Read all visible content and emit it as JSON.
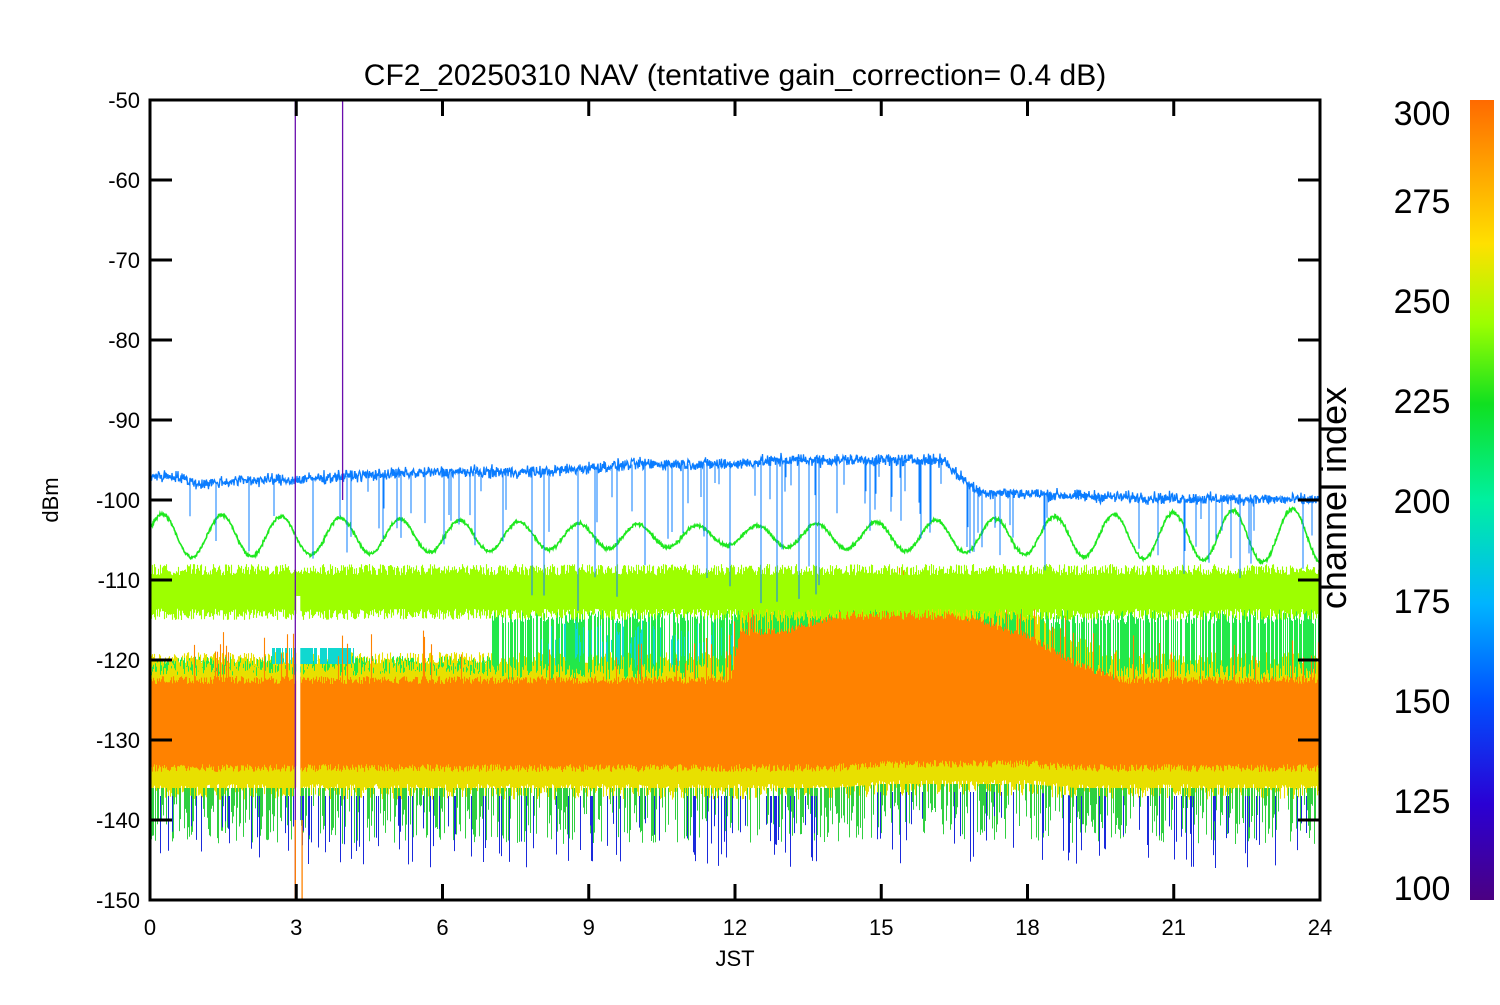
{
  "chart_data": {
    "type": "line",
    "title": "CF2_20250310 NAV (tentative gain_correction=  0.4 dB)",
    "xlabel": "JST",
    "ylabel": "dBm",
    "xlim": [
      0,
      24
    ],
    "ylim": [
      -150,
      -50
    ],
    "x_ticks": [
      "0",
      "3",
      "6",
      "9",
      "12",
      "15",
      "18",
      "21",
      "24"
    ],
    "y_ticks": [
      "-50",
      "-60",
      "-70",
      "-80",
      "-90",
      "-100",
      "-110",
      "-120",
      "-130",
      "-140",
      "-150"
    ],
    "grid": false,
    "colorbar": {
      "label": "channel index",
      "range": [
        100,
        300
      ],
      "ticks": [
        "300",
        "275",
        "250",
        "225",
        "200",
        "175",
        "150",
        "125",
        "100"
      ],
      "colormap": "rainbow (purple-blue-cyan-green-yellow-orange)"
    },
    "series": [
      {
        "channel_index": 150,
        "color": "#0a7cff",
        "description_points_x": [
          0,
          0.5,
          1,
          2,
          3,
          4,
          6,
          8,
          9,
          10,
          12,
          13,
          15,
          16.3,
          16.5,
          17,
          18,
          19,
          21,
          24
        ],
        "description_points_y": [
          -97,
          -97,
          -98,
          -97.5,
          -97.5,
          -97,
          -96.5,
          -96.5,
          -96,
          -95.5,
          -95.5,
          -95,
          -95,
          -95,
          -96.5,
          -99,
          -99.2,
          -99.5,
          -99.8,
          -100
        ]
      },
      {
        "channel_index": 225,
        "color": "#1ee81e",
        "shape": "sinusoid",
        "x": [
          0,
          24
        ],
        "center": -104.5,
        "amplitude_start": 2.8,
        "amplitude_mid": 1.2,
        "amplitude_end": 3.5,
        "period_hours": 1.22
      },
      {
        "channel_index": 260,
        "color": "#9dff00",
        "band_center": -111.5,
        "band_halfwidth": 3.5,
        "x": [
          0,
          24
        ]
      },
      {
        "channel_index": 210,
        "color": "#22e84a",
        "band_center": -118,
        "band_halfwidth": 4.5,
        "x": [
          0,
          24
        ]
      },
      {
        "channel_index": 280,
        "color": "#ff8200",
        "x": [
          0,
          2,
          4,
          6,
          8,
          10,
          11.9,
          12.1,
          13,
          14,
          15,
          16,
          17,
          18,
          19,
          20,
          22,
          24
        ],
        "center": [
          -128,
          -128,
          -128,
          -128,
          -128,
          -128,
          -128,
          -125,
          -125,
          -124,
          -123.5,
          -123.5,
          -124,
          -125,
          -127,
          -128,
          -128,
          -128
        ],
        "halfwidth": [
          5,
          5,
          5,
          5,
          5,
          5,
          5,
          8,
          8,
          9,
          9,
          9,
          8.5,
          7.5,
          6,
          5,
          5,
          5
        ]
      }
    ],
    "spikes": [
      {
        "x": 2.98,
        "y_from": -150,
        "y_to": -50,
        "color": "#6a0dad"
      },
      {
        "x": 3.95,
        "y_from": -100,
        "y_to": -50,
        "color": "#6a0dad"
      },
      {
        "x": 2.98,
        "y_from": -150,
        "y_to": -140,
        "color": "#ff8200"
      },
      {
        "x": 3.12,
        "y_from": -150,
        "y_to": -140,
        "color": "#ff8200"
      }
    ]
  }
}
